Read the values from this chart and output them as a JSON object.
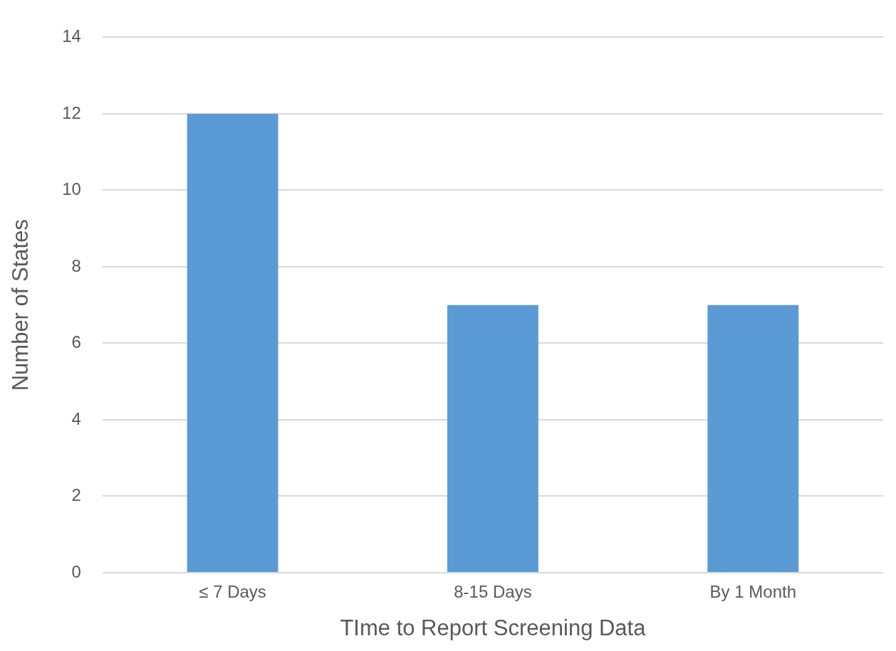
{
  "chart_data": {
    "type": "bar",
    "xlabel": "TIme to Report Screening Data",
    "ylabel": "Number of States",
    "categories": [
      "≤ 7 Days",
      "8-15 Days",
      "By 1 Month"
    ],
    "values": [
      12,
      7,
      7
    ],
    "color": "#5b9bd5",
    "ylim": [
      0,
      14
    ],
    "yticks": [
      0,
      2,
      4,
      6,
      8,
      10,
      12,
      14
    ],
    "grid": "y",
    "legend": false
  }
}
